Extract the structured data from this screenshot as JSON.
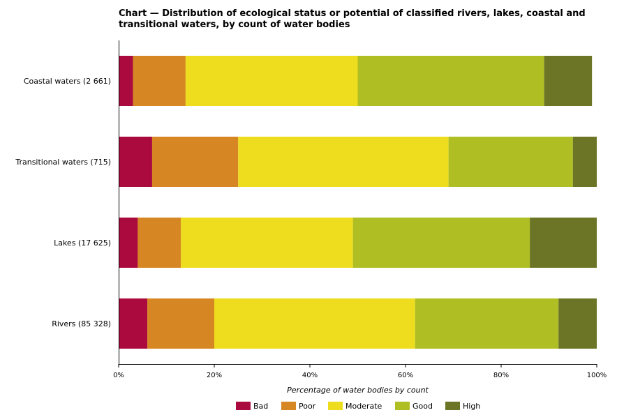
{
  "chart_data": {
    "type": "bar",
    "orientation": "horizontal",
    "stacked": true,
    "percent": true,
    "title": "Chart — Distribution of ecological status or potential of classified rivers, lakes, coastal and transitional waters, by count of water bodies",
    "xlabel": "Percentage of water bodies by count",
    "ylabel": "",
    "xlim": [
      0,
      100
    ],
    "x_ticks": [
      "0%",
      "20%",
      "40%",
      "60%",
      "80%",
      "100%"
    ],
    "categories": [
      "Coastal waters (2 661)",
      "Transitional waters (715)",
      "Lakes (17 625)",
      "Rivers (85 328)"
    ],
    "series": [
      {
        "name": "Bad",
        "color": "#ab0a3e",
        "values": [
          3,
          7,
          4,
          6
        ]
      },
      {
        "name": "Poor",
        "color": "#d68724",
        "values": [
          11,
          18,
          9,
          14
        ]
      },
      {
        "name": "Moderate",
        "color": "#eedd1e",
        "values": [
          36,
          44,
          36,
          42
        ]
      },
      {
        "name": "Good",
        "color": "#afbe22",
        "values": [
          39,
          26,
          37,
          30
        ]
      },
      {
        "name": "High",
        "color": "#6c7526",
        "values": [
          10,
          5,
          14,
          8
        ]
      }
    ],
    "legend_position": "bottom",
    "grid": false
  }
}
